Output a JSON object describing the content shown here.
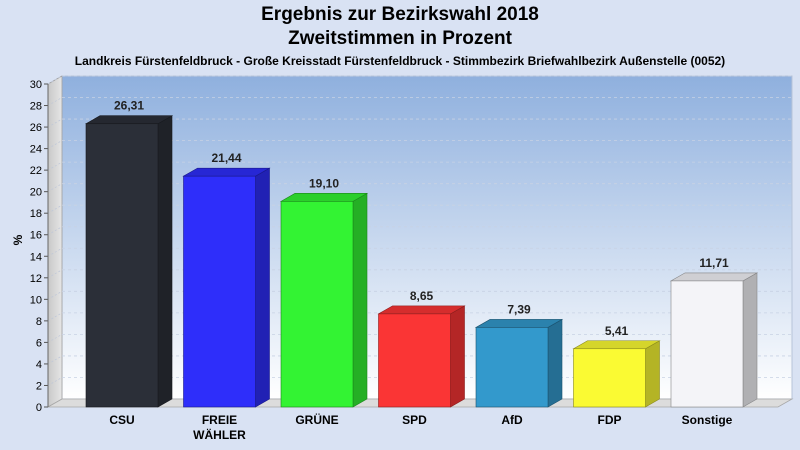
{
  "chart_data": {
    "type": "bar",
    "title": "Ergebnis zur Bezirkswahl 2018",
    "subtitle": "Zweitstimmen in Prozent",
    "description_line": "Landkreis Fürstenfeldbruck - Große Kreisstadt Fürstenfeldbruck - Stimmbezirk Briefwahlbezirk Außenstelle (0052)",
    "ylabel": "%",
    "ylim": [
      0,
      30
    ],
    "yticks": [
      0,
      2,
      4,
      6,
      8,
      10,
      12,
      14,
      16,
      18,
      20,
      22,
      24,
      26,
      28,
      30
    ],
    "grid": true,
    "categories": [
      "CSU",
      "FREIE WÄHLER",
      "GRÜNE",
      "SPD",
      "AfD",
      "FDP",
      "Sonstige"
    ],
    "values": [
      26.31,
      21.44,
      19.1,
      8.65,
      7.39,
      5.41,
      11.71
    ],
    "value_labels": [
      "26,31",
      "21,44",
      "19,10",
      "8,65",
      "7,39",
      "5,41",
      "11,71"
    ],
    "colors": [
      "#2b2f38",
      "#2e2efa",
      "#33f333",
      "#fa3535",
      "#3399cc",
      "#fafa33",
      "#f4f4f8"
    ]
  }
}
